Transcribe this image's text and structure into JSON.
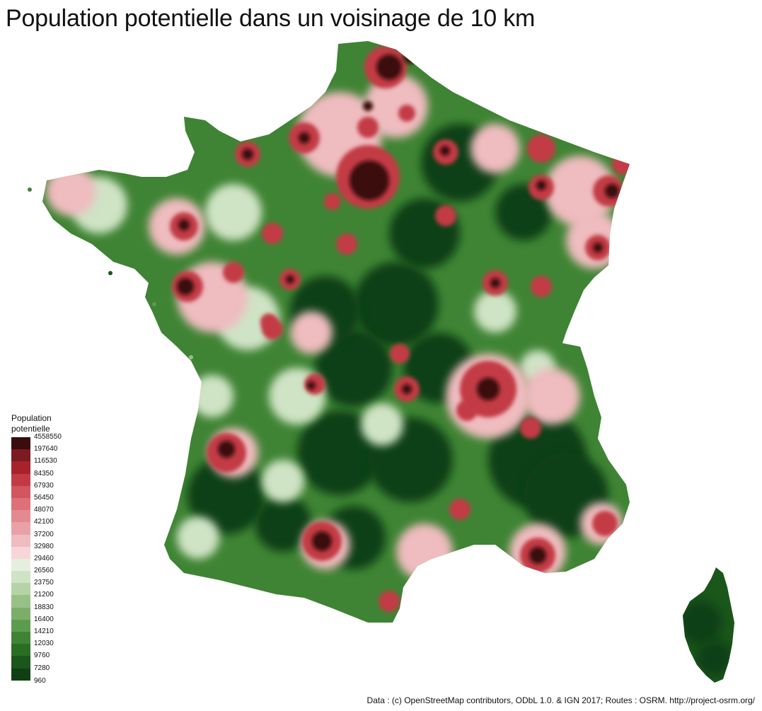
{
  "title": "Population potentielle dans un voisinage de 10 km",
  "legend": {
    "title": "Population potentielle",
    "breaks": [
      "4558550",
      "197640",
      "116530",
      "84350",
      "67930",
      "56450",
      "48070",
      "42100",
      "37200",
      "32980",
      "29460",
      "26560",
      "23750",
      "21200",
      "18830",
      "16400",
      "14210",
      "12030",
      "9760",
      "7280",
      "960"
    ],
    "colors": [
      "#3a0c0e",
      "#7c1a22",
      "#a8222c",
      "#c33a44",
      "#d25560",
      "#dd7078",
      "#e28a90",
      "#e8a2a7",
      "#efbcbf",
      "#f6d6d8",
      "#e6efdf",
      "#cfe3c5",
      "#b5d3a6",
      "#98c187",
      "#7bae6a",
      "#5d9b4e",
      "#3f8434",
      "#2a6e24",
      "#1b561a",
      "#0f3f12",
      "#08290b"
    ]
  },
  "map": {
    "colors": {
      "green_light": "#cfe3c5",
      "green_mid": "#3f8434",
      "green_dark": "#0f3f12",
      "red_light": "#efbcbf",
      "red_mid": "#c33a44",
      "red_dark": "#3a0c0e"
    }
  },
  "credits": "Data : (c) OpenStreetMap contributors, ODbL 1.0. & IGN 2017; Routes : OSRM. http://project-osrm.org/"
}
